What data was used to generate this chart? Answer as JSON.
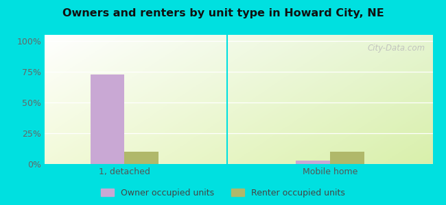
{
  "title": "Owners and renters by unit type in Howard City, NE",
  "categories": [
    "1, detached",
    "Mobile home"
  ],
  "owner_values": [
    73,
    3
  ],
  "renter_values": [
    10,
    10
  ],
  "owner_color": "#c9a8d4",
  "renter_color": "#b0b86a",
  "yticks": [
    0,
    25,
    50,
    75,
    100
  ],
  "ytick_labels": [
    "0%",
    "25%",
    "50%",
    "75%",
    "100%"
  ],
  "outer_bg": "#00e0e0",
  "legend_owner": "Owner occupied units",
  "legend_renter": "Renter occupied units",
  "bar_width": 0.3,
  "watermark": "City-Data.com"
}
